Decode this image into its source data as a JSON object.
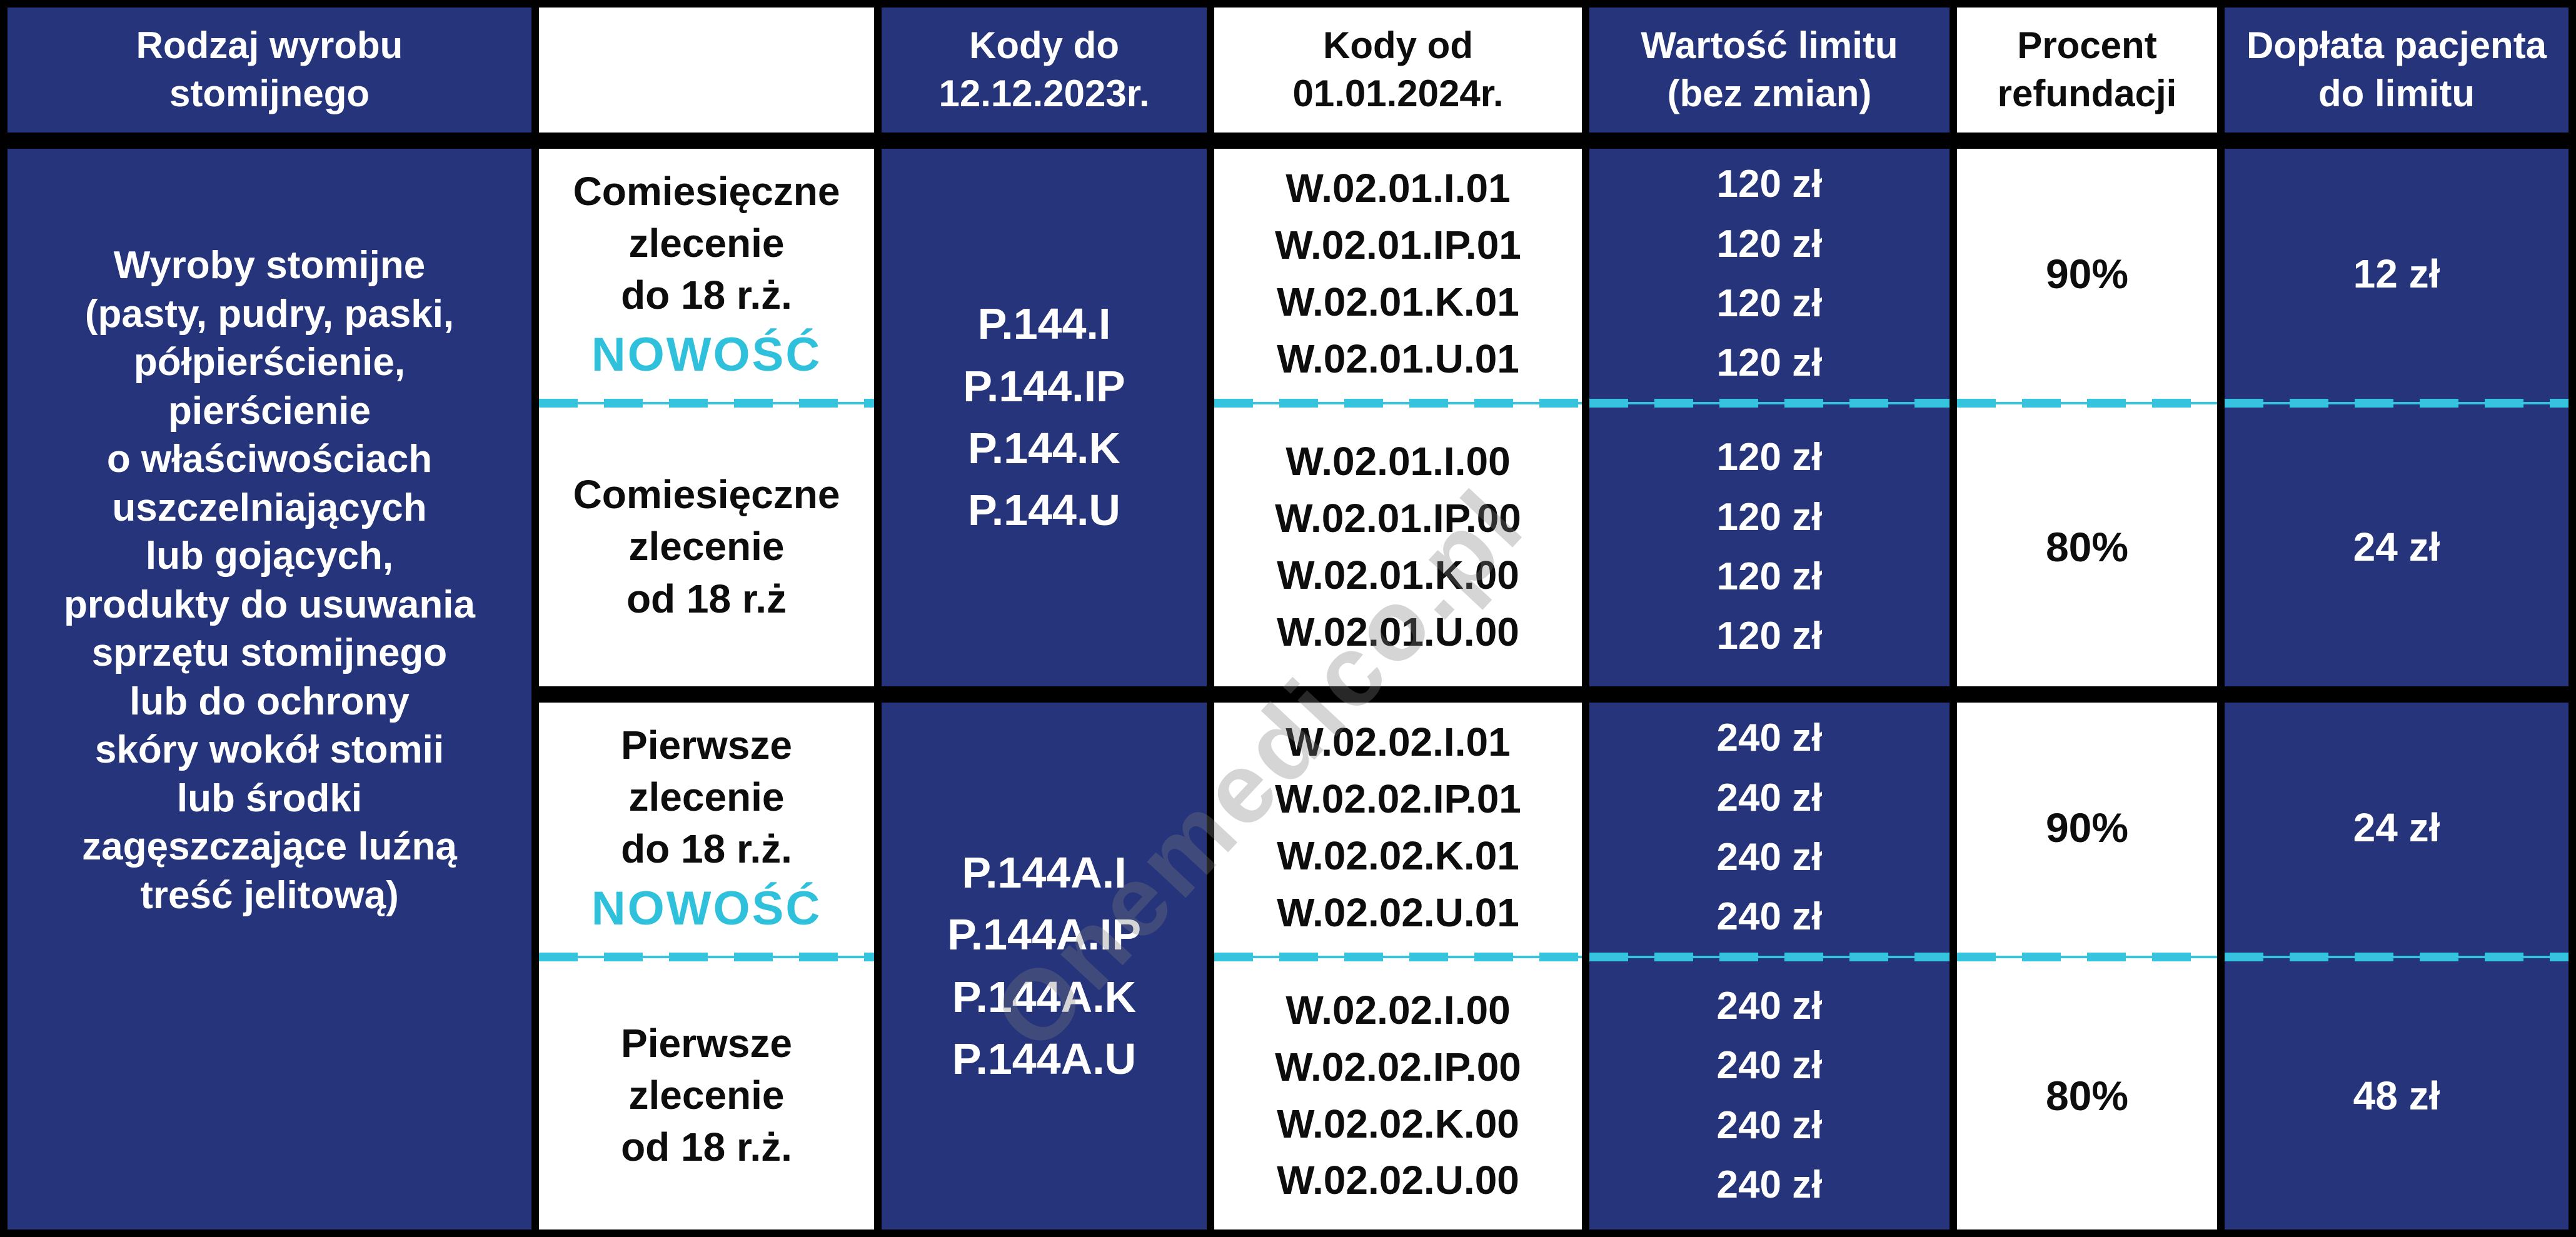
{
  "colors": {
    "navy": "#25347B",
    "cyan": "#35C3DD",
    "border_black": "#000000",
    "text_white": "#FFFFFF",
    "text_black": "#0D0D0D"
  },
  "watermark": "Onemedico.pl",
  "headers": {
    "product_type": "Rodzaj wyrobu\nstomijnego",
    "order_type": "",
    "codes_old": "Kody do\n12.12.2023r.",
    "codes_new": "Kody od\n01.01.2024r.",
    "limit_value": "Wartość limitu\n(bez zmian)",
    "refund_percent": "Procent\nrefundacji",
    "patient_copay": "Dopłata pacjenta\ndo limitu"
  },
  "product_type": "Wyroby stomijne\n(pasty, pudry, paski,\npółpierścienie,\npierścienie\no właściwościach\nuszczelniających\nlub gojących,\nprodukty do usuwania\nsprzętu stomijnego\nlub do ochrony\nskóry wokół stomii\nlub środki\nzagęszczające luźną\ntreść jelitową)",
  "codes_old": {
    "monthly": "P.144.I\nP.144.IP\nP.144.K\nP.144.U",
    "first": "P.144A.I\nP.144A.IP\nP.144A.K\nP.144A.U"
  },
  "rows": [
    {
      "order": "Comiesięczne\nzlecenie\ndo 18 r.ż.",
      "badge": "NOWOŚĆ",
      "codes_new": "W.02.01.I.01\nW.02.01.IP.01\nW.02.01.K.01\nW.02.01.U.01",
      "limit": "120 zł\n120 zł\n120 zł\n120 zł",
      "percent": "90%",
      "copay": "12 zł"
    },
    {
      "order": "Comiesięczne\nzlecenie\nod 18 r.ż",
      "badge": "",
      "codes_new": "W.02.01.I.00\nW.02.01.IP.00\nW.02.01.K.00\nW.02.01.U.00",
      "limit": "120 zł\n120 zł\n120 zł\n120 zł",
      "percent": "80%",
      "copay": "24 zł"
    },
    {
      "order": "Pierwsze\nzlecenie\ndo 18 r.ż.",
      "badge": "NOWOŚĆ",
      "codes_new": "W.02.02.I.01\nW.02.02.IP.01\nW.02.02.K.01\nW.02.02.U.01",
      "limit": "240 zł\n240 zł\n240 zł\n240 zł",
      "percent": "90%",
      "copay": "24 zł"
    },
    {
      "order": "Pierwsze\nzlecenie\nod 18 r.ż.",
      "badge": "",
      "codes_new": "W.02.02.I.00\nW.02.02.IP.00\nW.02.02.K.00\nW.02.02.U.00",
      "limit": "240 zł\n240 zł\n240 zł\n240 zł",
      "percent": "80%",
      "copay": "48 zł"
    }
  ]
}
